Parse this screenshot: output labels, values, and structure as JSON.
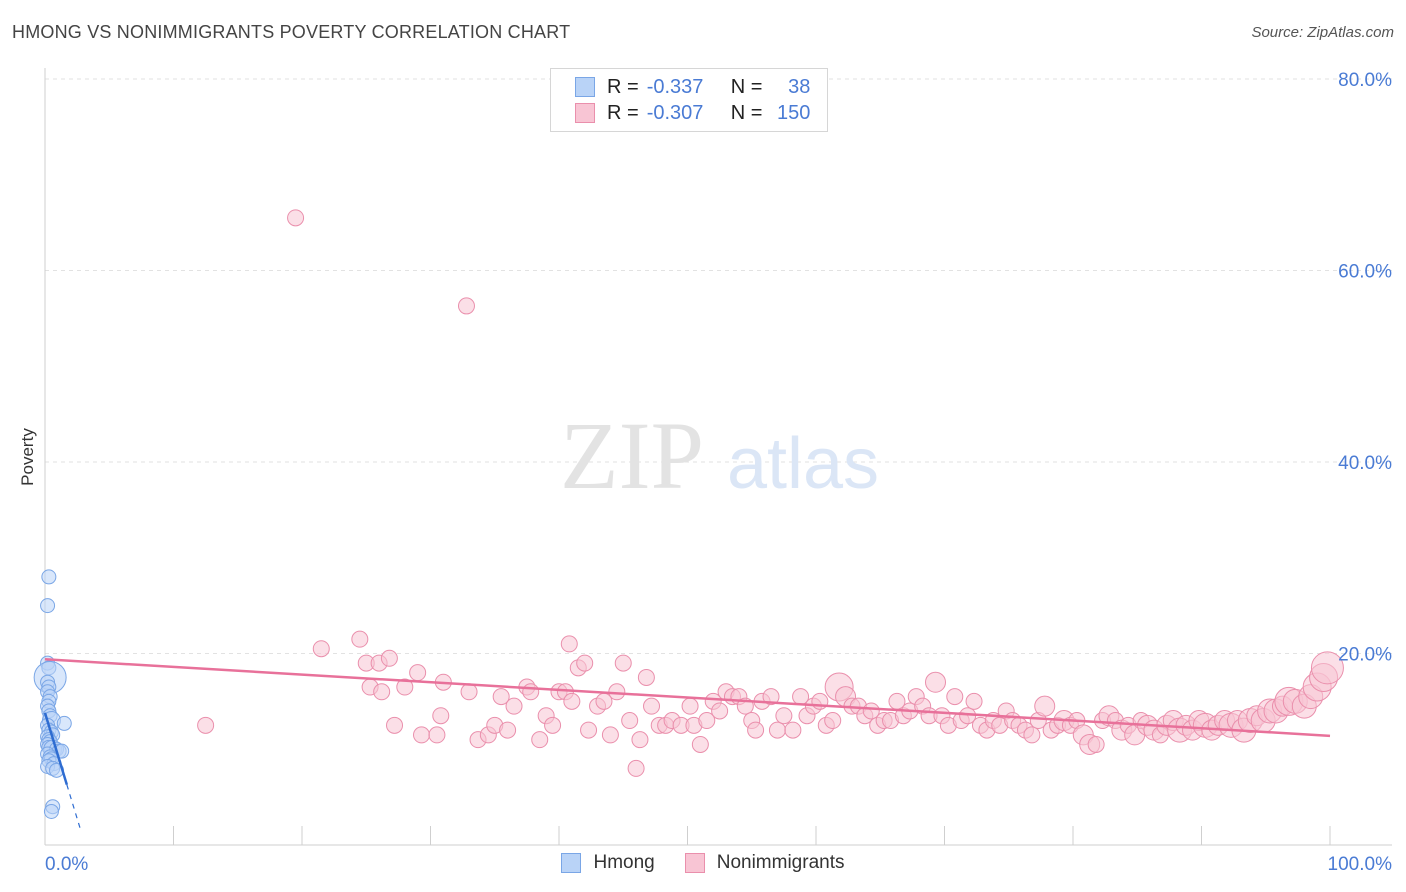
{
  "title": "HMONG VS NONIMMIGRANTS POVERTY CORRELATION CHART",
  "source": "Source: ZipAtlas.com",
  "watermark": {
    "zip": "ZIP",
    "atlas": "atlas"
  },
  "colors": {
    "blue_fill": "#b9d3f7",
    "blue_stroke": "#7aa6e6",
    "blue_line": "#2e6cd1",
    "pink_fill": "#f8c5d4",
    "pink_stroke": "#ea8fac",
    "pink_line": "#e8719a",
    "accent_text": "#4a7bd4"
  },
  "legend": {
    "rows": [
      {
        "r_label": "R =",
        "r_value": "-0.337",
        "n_label": "N =",
        "n_value": "38"
      },
      {
        "r_label": "R =",
        "r_value": "-0.307",
        "n_label": "N =",
        "n_value": "150"
      }
    ]
  },
  "bottom_legend": {
    "hmong": "Hmong",
    "nonimmigrants": "Nonimmigrants"
  },
  "chart_data": {
    "type": "scatter",
    "title": "HMONG VS NONIMMIGRANTS POVERTY CORRELATION CHART",
    "xlabel": "",
    "ylabel": "Poverty",
    "xlim": [
      0,
      100
    ],
    "ylim": [
      0,
      80
    ],
    "x_tick_labels": {
      "min": "0.0%",
      "max": "100.0%"
    },
    "y_ticks": [
      {
        "value": 20,
        "label": "20.0%"
      },
      {
        "value": 40,
        "label": "40.0%"
      },
      {
        "value": 60,
        "label": "60.0%"
      },
      {
        "value": 80,
        "label": "80.0%"
      }
    ],
    "grid": true,
    "legend_position": "top-center",
    "series": [
      {
        "name": "Hmong",
        "trend": {
          "x0": 0,
          "y0": 13.8,
          "x1": 1.7,
          "y1": 6.3,
          "dash_to_x": 2.8
        },
        "points": [
          [
            0.3,
            28.0,
            7
          ],
          [
            0.2,
            25.0,
            7
          ],
          [
            0.2,
            19.0,
            7
          ],
          [
            0.3,
            18.5,
            7
          ],
          [
            0.4,
            17.5,
            16
          ],
          [
            0.2,
            17.0,
            7
          ],
          [
            0.3,
            16.5,
            7
          ],
          [
            0.2,
            16.0,
            7
          ],
          [
            0.4,
            15.5,
            7
          ],
          [
            0.3,
            15.0,
            7
          ],
          [
            0.2,
            14.5,
            7
          ],
          [
            0.3,
            14.0,
            7
          ],
          [
            0.4,
            13.5,
            7
          ],
          [
            0.5,
            13.0,
            9
          ],
          [
            1.5,
            12.7,
            7
          ],
          [
            0.2,
            12.5,
            7
          ],
          [
            0.3,
            12.0,
            7
          ],
          [
            0.5,
            11.8,
            7
          ],
          [
            0.6,
            11.5,
            7
          ],
          [
            0.2,
            11.3,
            7
          ],
          [
            0.3,
            11.0,
            7
          ],
          [
            0.4,
            10.8,
            7
          ],
          [
            0.2,
            10.5,
            7
          ],
          [
            0.3,
            10.2,
            7
          ],
          [
            0.6,
            10.0,
            9
          ],
          [
            0.9,
            10.0,
            7
          ],
          [
            1.1,
            9.8,
            7
          ],
          [
            1.3,
            9.8,
            7
          ],
          [
            0.2,
            9.5,
            7
          ],
          [
            0.4,
            9.2,
            7
          ],
          [
            0.5,
            9.0,
            7
          ],
          [
            0.3,
            8.8,
            7
          ],
          [
            0.7,
            8.5,
            7
          ],
          [
            0.2,
            8.2,
            7
          ],
          [
            0.6,
            8.0,
            7
          ],
          [
            0.9,
            7.8,
            7
          ],
          [
            0.6,
            4.0,
            7
          ],
          [
            0.5,
            3.5,
            7
          ]
        ]
      },
      {
        "name": "Nonimmigrants",
        "trend": {
          "x0": 0,
          "y0": 19.4,
          "x1": 100,
          "y1": 11.4
        },
        "points": [
          [
            19.5,
            65.5,
            8
          ],
          [
            32.8,
            56.3,
            8
          ],
          [
            12.5,
            12.5,
            8
          ],
          [
            21.5,
            20.5,
            8
          ],
          [
            24.5,
            21.5,
            8
          ],
          [
            25.0,
            19.0,
            8
          ],
          [
            26.0,
            19.0,
            8
          ],
          [
            26.8,
            19.5,
            8
          ],
          [
            25.3,
            16.5,
            8
          ],
          [
            26.2,
            16.0,
            8
          ],
          [
            27.2,
            12.5,
            8
          ],
          [
            28.0,
            16.5,
            8
          ],
          [
            29.0,
            18.0,
            8
          ],
          [
            29.3,
            11.5,
            8
          ],
          [
            30.5,
            11.5,
            8
          ],
          [
            30.8,
            13.5,
            8
          ],
          [
            31.0,
            17.0,
            8
          ],
          [
            33.0,
            16.0,
            8
          ],
          [
            33.7,
            11.0,
            8
          ],
          [
            34.5,
            11.5,
            8
          ],
          [
            35.0,
            12.5,
            8
          ],
          [
            35.5,
            15.5,
            8
          ],
          [
            36.0,
            12.0,
            8
          ],
          [
            36.5,
            14.5,
            8
          ],
          [
            37.5,
            16.5,
            8
          ],
          [
            37.8,
            16.0,
            8
          ],
          [
            38.5,
            11.0,
            8
          ],
          [
            39.0,
            13.5,
            8
          ],
          [
            39.5,
            12.5,
            8
          ],
          [
            40.0,
            16.0,
            8
          ],
          [
            40.5,
            16.0,
            8
          ],
          [
            40.8,
            21.0,
            8
          ],
          [
            41.0,
            15.0,
            8
          ],
          [
            41.5,
            18.5,
            8
          ],
          [
            42.0,
            19.0,
            8
          ],
          [
            42.3,
            12.0,
            8
          ],
          [
            43.0,
            14.5,
            8
          ],
          [
            43.5,
            15.0,
            8
          ],
          [
            44.0,
            11.5,
            8
          ],
          [
            44.5,
            16.0,
            8
          ],
          [
            45.0,
            19.0,
            8
          ],
          [
            45.5,
            13.0,
            8
          ],
          [
            46.0,
            8.0,
            8
          ],
          [
            46.3,
            11.0,
            8
          ],
          [
            46.8,
            17.5,
            8
          ],
          [
            47.2,
            14.5,
            8
          ],
          [
            47.8,
            12.5,
            8
          ],
          [
            48.3,
            12.5,
            8
          ],
          [
            48.8,
            13.0,
            8
          ],
          [
            49.5,
            12.5,
            8
          ],
          [
            50.2,
            14.5,
            8
          ],
          [
            50.5,
            12.5,
            8
          ],
          [
            51.0,
            10.5,
            8
          ],
          [
            51.5,
            13.0,
            8
          ],
          [
            52.0,
            15.0,
            8
          ],
          [
            52.5,
            14.0,
            8
          ],
          [
            53.0,
            16.0,
            8
          ],
          [
            53.5,
            15.5,
            8
          ],
          [
            54.0,
            15.5,
            8
          ],
          [
            54.5,
            14.5,
            8
          ],
          [
            55.0,
            13.0,
            8
          ],
          [
            55.3,
            12.0,
            8
          ],
          [
            55.8,
            15.0,
            8
          ],
          [
            56.5,
            15.5,
            8
          ],
          [
            57.0,
            12.0,
            8
          ],
          [
            57.5,
            13.5,
            8
          ],
          [
            58.2,
            12.0,
            8
          ],
          [
            58.8,
            15.5,
            8
          ],
          [
            59.3,
            13.5,
            8
          ],
          [
            59.8,
            14.5,
            8
          ],
          [
            60.3,
            15.0,
            8
          ],
          [
            60.8,
            12.5,
            8
          ],
          [
            61.3,
            13.0,
            8
          ],
          [
            61.8,
            16.5,
            14
          ],
          [
            62.3,
            15.5,
            10
          ],
          [
            62.8,
            14.5,
            8
          ],
          [
            63.3,
            14.5,
            8
          ],
          [
            63.8,
            13.5,
            8
          ],
          [
            64.3,
            14.0,
            8
          ],
          [
            64.8,
            12.5,
            8
          ],
          [
            65.3,
            13.0,
            8
          ],
          [
            65.8,
            13.0,
            8
          ],
          [
            66.3,
            15.0,
            8
          ],
          [
            66.8,
            13.5,
            8
          ],
          [
            67.3,
            14.0,
            8
          ],
          [
            67.8,
            15.5,
            8
          ],
          [
            68.3,
            14.5,
            8
          ],
          [
            68.8,
            13.5,
            8
          ],
          [
            69.3,
            17.0,
            10
          ],
          [
            69.8,
            13.5,
            8
          ],
          [
            70.3,
            12.5,
            8
          ],
          [
            70.8,
            15.5,
            8
          ],
          [
            71.3,
            13.0,
            8
          ],
          [
            71.8,
            13.5,
            8
          ],
          [
            72.3,
            15.0,
            8
          ],
          [
            72.8,
            12.5,
            8
          ],
          [
            73.3,
            12.0,
            8
          ],
          [
            73.8,
            13.0,
            8
          ],
          [
            74.3,
            12.5,
            8
          ],
          [
            74.8,
            14.0,
            8
          ],
          [
            75.3,
            13.0,
            8
          ],
          [
            75.8,
            12.5,
            8
          ],
          [
            76.3,
            12.0,
            8
          ],
          [
            76.8,
            11.5,
            8
          ],
          [
            77.3,
            13.0,
            8
          ],
          [
            77.8,
            14.5,
            10
          ],
          [
            78.3,
            12.0,
            8
          ],
          [
            78.8,
            12.5,
            8
          ],
          [
            79.3,
            13.0,
            10
          ],
          [
            79.8,
            12.5,
            8
          ],
          [
            80.3,
            13.0,
            8
          ],
          [
            80.8,
            11.5,
            10
          ],
          [
            81.3,
            10.5,
            10
          ],
          [
            81.8,
            10.5,
            8
          ],
          [
            82.3,
            13.0,
            8
          ],
          [
            82.8,
            13.5,
            10
          ],
          [
            83.3,
            13.0,
            8
          ],
          [
            83.8,
            12.0,
            10
          ],
          [
            84.3,
            12.5,
            8
          ],
          [
            84.8,
            11.5,
            10
          ],
          [
            85.3,
            13.0,
            8
          ],
          [
            85.8,
            12.5,
            10
          ],
          [
            86.3,
            12.0,
            10
          ],
          [
            86.8,
            11.5,
            8
          ],
          [
            87.3,
            12.5,
            10
          ],
          [
            87.8,
            13.0,
            10
          ],
          [
            88.3,
            12.0,
            12
          ],
          [
            88.8,
            12.5,
            10
          ],
          [
            89.3,
            12.0,
            10
          ],
          [
            89.8,
            13.0,
            10
          ],
          [
            90.3,
            12.5,
            12
          ],
          [
            90.8,
            12.0,
            10
          ],
          [
            91.3,
            12.5,
            10
          ],
          [
            91.8,
            13.0,
            10
          ],
          [
            92.3,
            12.5,
            12
          ],
          [
            92.8,
            13.0,
            10
          ],
          [
            93.3,
            12.0,
            12
          ],
          [
            93.8,
            13.0,
            12
          ],
          [
            94.3,
            13.5,
            10
          ],
          [
            94.8,
            13.0,
            12
          ],
          [
            95.3,
            14.0,
            12
          ],
          [
            95.8,
            14.0,
            12
          ],
          [
            96.3,
            14.5,
            10
          ],
          [
            96.8,
            15.0,
            14
          ],
          [
            97.3,
            15.0,
            12
          ],
          [
            98.0,
            14.5,
            12
          ],
          [
            98.5,
            15.5,
            12
          ],
          [
            99.0,
            16.5,
            14
          ],
          [
            99.5,
            17.5,
            14
          ],
          [
            99.8,
            18.5,
            16
          ]
        ]
      }
    ]
  }
}
